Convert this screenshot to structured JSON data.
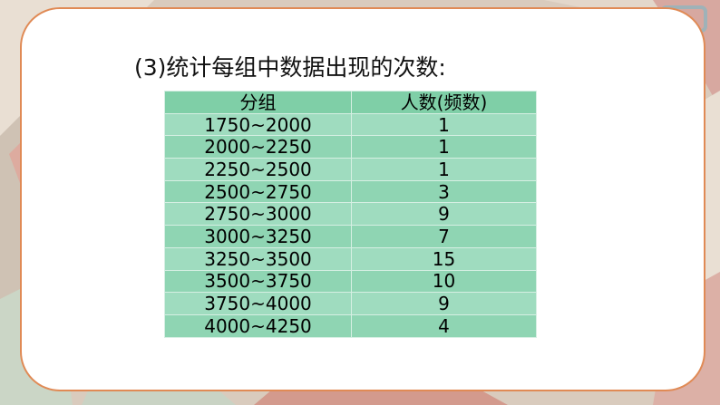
{
  "heading": "(3)统计每组中数据出现的次数:",
  "table": {
    "headers": [
      "分组",
      "人数(频数)"
    ],
    "rows": [
      [
        "1750~2000",
        "1"
      ],
      [
        "2000~2250",
        "1"
      ],
      [
        "2250~2500",
        "1"
      ],
      [
        "2500~2750",
        "3"
      ],
      [
        "2750~3000",
        "9"
      ],
      [
        "3000~3250",
        "7"
      ],
      [
        "3250~3500",
        "15"
      ],
      [
        "3500~3750",
        "10"
      ],
      [
        "3750~4000",
        "9"
      ],
      [
        "4000~4250",
        "4"
      ]
    ]
  },
  "colors": {
    "card_border": "#e08a55",
    "table_header": "#7fcfa7",
    "table_row": "#9fdcbf"
  }
}
